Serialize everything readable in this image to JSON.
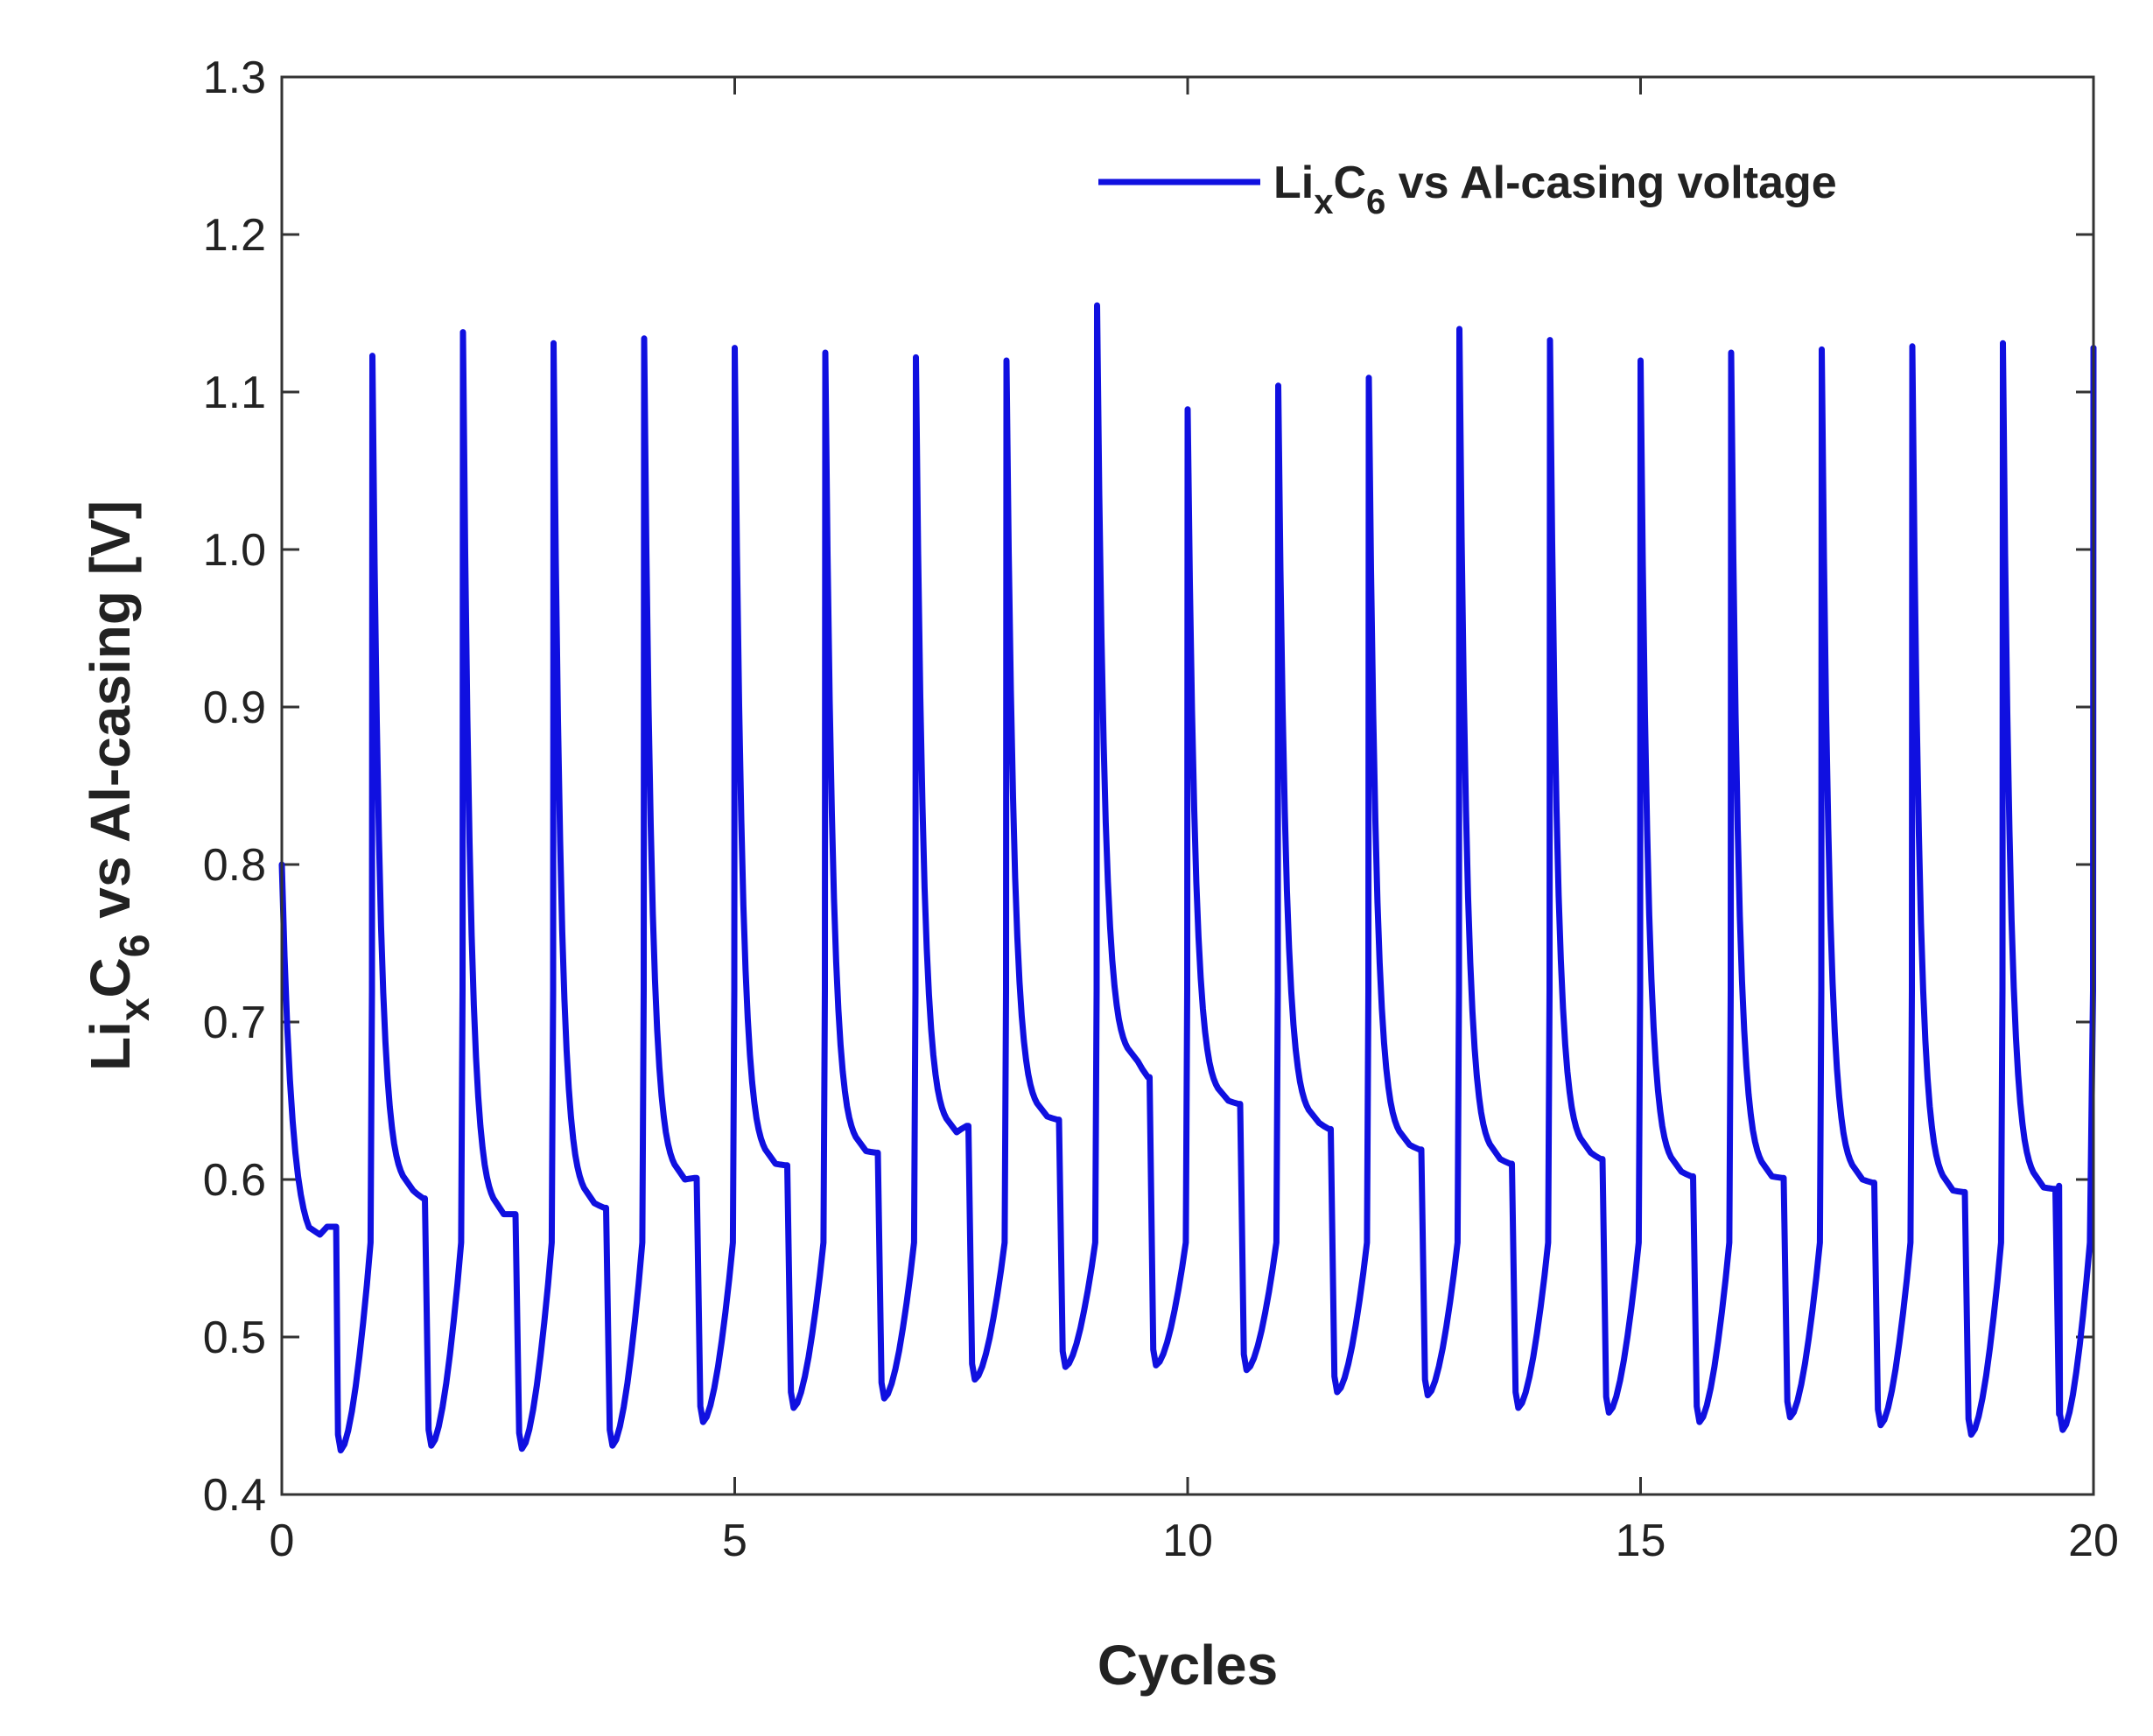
{
  "chart_data": {
    "type": "line",
    "title": "",
    "xlabel": "Cycles",
    "ylabel": {
      "main": "Li",
      "sub1": "x",
      "mid": "C",
      "sub2": "6",
      "rest": " vs Al-casing [V]"
    },
    "xlim": [
      0,
      20
    ],
    "ylim": [
      0.4,
      1.3
    ],
    "xticks": [
      0,
      5,
      10,
      15,
      20
    ],
    "xtick_labels": [
      "0",
      "5",
      "10",
      "15",
      "20"
    ],
    "yticks": [
      0.4,
      0.5,
      0.6,
      0.7,
      0.8,
      0.9,
      1.0,
      1.1,
      1.2,
      1.3
    ],
    "ytick_labels": [
      "0.4",
      "0.5",
      "0.6",
      "0.7",
      "0.8",
      "0.9",
      "1.0",
      "1.1",
      "1.2",
      "1.3"
    ],
    "grid": false,
    "legend": {
      "position": "top-right",
      "entries": [
        {
          "main": "Li",
          "sub1": "x",
          "mid": "C",
          "sub2": "6",
          "rest": " vs Al-casing voltage"
        }
      ]
    },
    "series": [
      {
        "name": "LixC6 vs Al-casing voltage",
        "color": "#1010e0",
        "initial": {
          "start": 0.8,
          "trough": 0.553,
          "plateau": 0.57
        },
        "cycles": [
          {
            "peak": 1.123,
            "plateau_start": 0.593,
            "plateau_end": 0.588,
            "trough": 0.428
          },
          {
            "peak": 1.138,
            "plateau_start": 0.578,
            "plateau_end": 0.578,
            "trough": 0.431
          },
          {
            "peak": 1.131,
            "plateau_start": 0.585,
            "plateau_end": 0.582,
            "trough": 0.429
          },
          {
            "peak": 1.134,
            "plateau_start": 0.6,
            "plateau_end": 0.601,
            "trough": 0.431
          },
          {
            "peak": 1.128,
            "plateau_start": 0.61,
            "plateau_end": 0.609,
            "trough": 0.446
          },
          {
            "peak": 1.125,
            "plateau_start": 0.618,
            "plateau_end": 0.617,
            "trough": 0.455
          },
          {
            "peak": 1.122,
            "plateau_start": 0.63,
            "plateau_end": 0.634,
            "trough": 0.461
          },
          {
            "peak": 1.12,
            "plateau_start": 0.64,
            "plateau_end": 0.638,
            "trough": 0.473
          },
          {
            "peak": 1.155,
            "plateau_start": 0.675,
            "plateau_end": 0.665,
            "trough": 0.481
          },
          {
            "peak": 1.089,
            "plateau_start": 0.65,
            "plateau_end": 0.648,
            "trough": 0.482
          },
          {
            "peak": 1.104,
            "plateau_start": 0.636,
            "plateau_end": 0.632,
            "trough": 0.479
          },
          {
            "peak": 1.109,
            "plateau_start": 0.622,
            "plateau_end": 0.619,
            "trough": 0.465
          },
          {
            "peak": 1.14,
            "plateau_start": 0.613,
            "plateau_end": 0.61,
            "trough": 0.463
          },
          {
            "peak": 1.133,
            "plateau_start": 0.617,
            "plateau_end": 0.613,
            "trough": 0.455
          },
          {
            "peak": 1.12,
            "plateau_start": 0.605,
            "plateau_end": 0.602,
            "trough": 0.452
          },
          {
            "peak": 1.125,
            "plateau_start": 0.602,
            "plateau_end": 0.601,
            "trough": 0.446
          },
          {
            "peak": 1.127,
            "plateau_start": 0.6,
            "plateau_end": 0.598,
            "trough": 0.449
          },
          {
            "peak": 1.129,
            "plateau_start": 0.593,
            "plateau_end": 0.592,
            "trough": 0.444
          },
          {
            "peak": 1.131,
            "plateau_start": 0.595,
            "plateau_end": 0.594,
            "trough": 0.438
          },
          {
            "peak": 1.128,
            "plateau_start": 0.594,
            "plateau_end": 0.596,
            "trough": 0.441
          }
        ],
        "final_peak": 1.128
      }
    ]
  }
}
